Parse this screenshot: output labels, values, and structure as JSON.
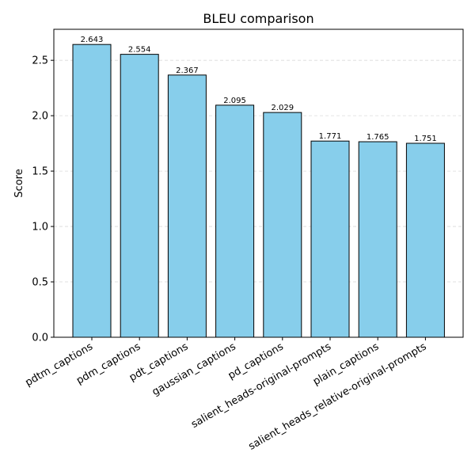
{
  "chart_data": {
    "type": "bar",
    "title": "BLEU comparison",
    "xlabel": "",
    "ylabel": "Score",
    "ylim": [
      0,
      2.78
    ],
    "yticks": [
      0.0,
      0.5,
      1.0,
      1.5,
      2.0,
      2.5
    ],
    "ytick_labels": [
      "0.0",
      "0.5",
      "1.0",
      "1.5",
      "2.0",
      "2.5"
    ],
    "grid": "y-dashed",
    "bar_color": "#87ceeb",
    "edge_color": "#000000",
    "categories": [
      "pdtm_captions",
      "pdm_captions",
      "pdt_captions",
      "gaussian_captions",
      "pd_captions",
      "salient_heads-original-prompts",
      "plain_captions",
      "salient_heads_relative-original-prompts"
    ],
    "values": [
      2.643,
      2.554,
      2.367,
      2.095,
      2.029,
      1.771,
      1.765,
      1.751
    ],
    "value_labels": [
      "2.643",
      "2.554",
      "2.367",
      "2.095",
      "2.029",
      "1.771",
      "1.765",
      "1.751"
    ]
  }
}
